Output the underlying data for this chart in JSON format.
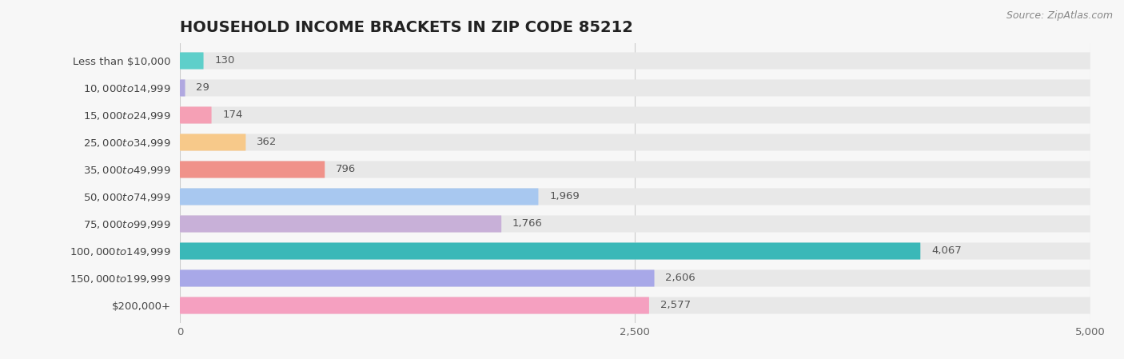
{
  "title": "HOUSEHOLD INCOME BRACKETS IN ZIP CODE 85212",
  "source_text": "Source: ZipAtlas.com",
  "categories": [
    "Less than $10,000",
    "$10,000 to $14,999",
    "$15,000 to $24,999",
    "$25,000 to $34,999",
    "$35,000 to $49,999",
    "$50,000 to $74,999",
    "$75,000 to $99,999",
    "$100,000 to $149,999",
    "$150,000 to $199,999",
    "$200,000+"
  ],
  "values": [
    130,
    29,
    174,
    362,
    796,
    1969,
    1766,
    4067,
    2606,
    2577
  ],
  "bar_colors": [
    "#5ecfca",
    "#b0a8e0",
    "#f5a0b5",
    "#f7c98a",
    "#f0928a",
    "#a8c8f0",
    "#c8b0d8",
    "#3ab8b8",
    "#a8a8e8",
    "#f5a0c0"
  ],
  "background_color": "#f7f7f7",
  "bar_bg_color": "#e8e8e8",
  "xlim": [
    0,
    5000
  ],
  "xticks": [
    0,
    2500,
    5000
  ],
  "title_fontsize": 14,
  "label_fontsize": 9.5,
  "value_fontsize": 9.5,
  "source_fontsize": 9
}
